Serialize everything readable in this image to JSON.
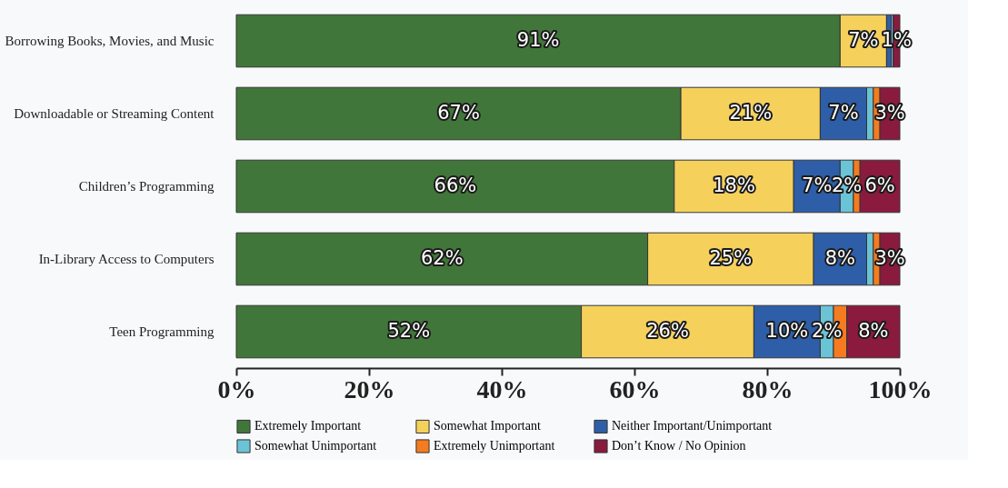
{
  "chart_data": {
    "type": "bar",
    "orientation": "horizontal",
    "stacked": true,
    "categories": [
      "Borrowing Books, Movies, and Music",
      "Downloadable or Streaming Content",
      "Children’s Programming",
      "In-Library Access to Computers",
      "Teen Programming"
    ],
    "series": [
      {
        "name": "Extremely Important",
        "color": "#41763a",
        "values": [
          91,
          67,
          66,
          62,
          52
        ],
        "value_labels": [
          "91%",
          "67%",
          "66%",
          "62%",
          "52%"
        ]
      },
      {
        "name": "Somewhat Important",
        "color": "#f5d15c",
        "values": [
          7,
          21,
          18,
          25,
          26
        ],
        "value_labels": [
          "7%",
          "21%",
          "18%",
          "25%",
          "26%"
        ]
      },
      {
        "name": "Neither Important/Unimportant",
        "color": "#2e5ea8",
        "values": [
          0.7,
          7,
          7,
          8,
          10
        ],
        "value_labels": [
          null,
          "7%",
          "7%",
          "8%",
          "10%"
        ]
      },
      {
        "name": "Somewhat Unimportant",
        "color": "#6bc3d6",
        "values": [
          0.3,
          1,
          2,
          1,
          2
        ],
        "value_labels": [
          null,
          null,
          "2%",
          null,
          "2%"
        ]
      },
      {
        "name": "Extremely Unimportant",
        "color": "#f47b20",
        "values": [
          0,
          1,
          1,
          1,
          2
        ],
        "value_labels": [
          null,
          null,
          null,
          null,
          null
        ]
      },
      {
        "name": "Don’t Know / No Opinion",
        "color": "#8a1a3e",
        "values": [
          1,
          3,
          6,
          3,
          8
        ],
        "value_labels": [
          "1%",
          "3%",
          "6%",
          "3%",
          "8%"
        ]
      }
    ],
    "xlim": [
      0,
      100
    ],
    "xticks": [
      {
        "value": 0,
        "label": "0%"
      },
      {
        "value": 20,
        "label": "20%"
      },
      {
        "value": 40,
        "label": "40%"
      },
      {
        "value": 60,
        "label": "60%"
      },
      {
        "value": 80,
        "label": "80%"
      },
      {
        "value": 100,
        "label": "100%"
      }
    ],
    "grid": false,
    "legend": "bottom"
  }
}
